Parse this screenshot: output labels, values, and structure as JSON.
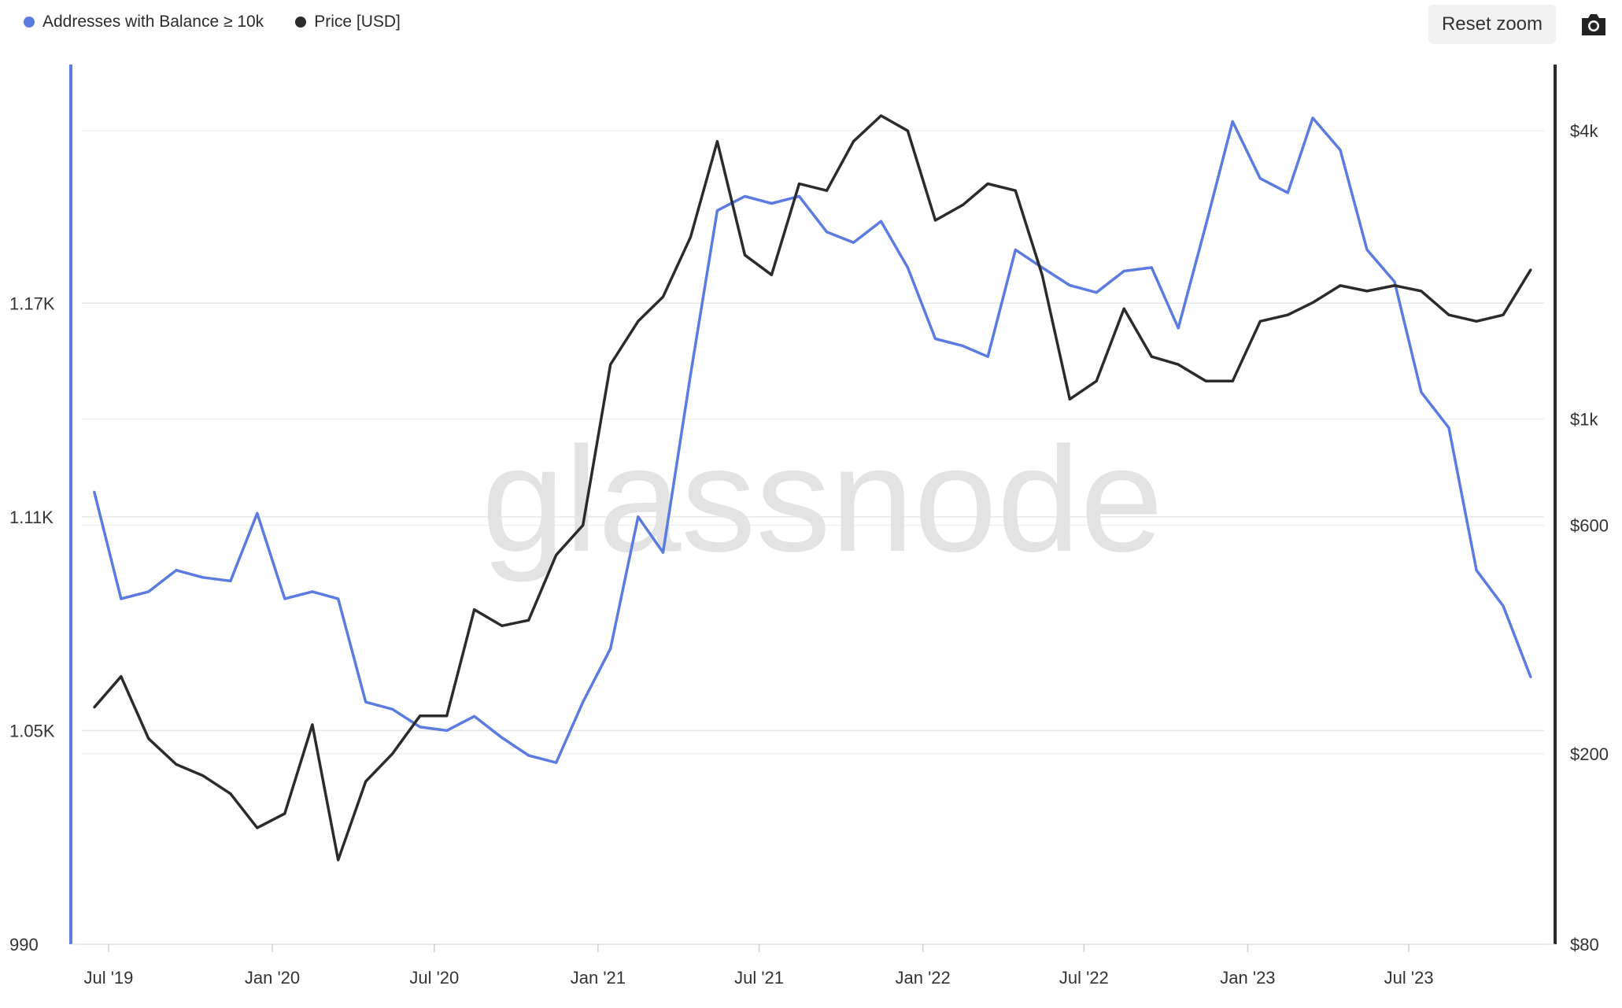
{
  "legend": {
    "series_a_label": "Addresses with Balance ≥ 10k",
    "series_b_label": "Price [USD]"
  },
  "toolbar": {
    "reset_label": "Reset zoom",
    "camera_icon": "camera-icon"
  },
  "watermark": "glassnode",
  "colors": {
    "addresses": "#5b7be0",
    "price": "#2b2b2b",
    "grid": "#e8e8e8"
  },
  "chart_data": {
    "type": "line",
    "x_ticks": [
      "Jul '19",
      "Jan '20",
      "Jul '20",
      "Jan '21",
      "Jul '21",
      "Jan '22",
      "Jul '22",
      "Jan '23",
      "Jul '23"
    ],
    "y_left_ticks": [
      "990",
      "1.05K",
      "1.11K",
      "1.17K"
    ],
    "y_left_values": [
      990,
      1050,
      1110,
      1170
    ],
    "y_left_range": [
      990,
      1237
    ],
    "y_right_ticks": [
      "$80",
      "$200",
      "$600",
      "$1k",
      "$4k"
    ],
    "y_right_values": [
      80,
      200,
      600,
      1000,
      4000
    ],
    "y_right_range": [
      80,
      5500
    ],
    "y_right_scale": "log",
    "x_range": [
      "2019-06-01",
      "2023-11-30"
    ],
    "series": [
      {
        "name": "Addresses with Balance ≥ 10k",
        "axis": "left",
        "color": "#5b7be0",
        "x": [
          "2019-06",
          "2019-07",
          "2019-08",
          "2019-09",
          "2019-10",
          "2019-11",
          "2019-12",
          "2020-01",
          "2020-02",
          "2020-03",
          "2020-04",
          "2020-05",
          "2020-06",
          "2020-07",
          "2020-08",
          "2020-09",
          "2020-10",
          "2020-11",
          "2020-12",
          "2021-01",
          "2021-02",
          "2021-03",
          "2021-04",
          "2021-05",
          "2021-06",
          "2021-07",
          "2021-08",
          "2021-09",
          "2021-10",
          "2021-11",
          "2021-12",
          "2022-01",
          "2022-02",
          "2022-03",
          "2022-04",
          "2022-05",
          "2022-06",
          "2022-07",
          "2022-08",
          "2022-09",
          "2022-10",
          "2022-11",
          "2022-12",
          "2023-01",
          "2023-02",
          "2023-03",
          "2023-04",
          "2023-05",
          "2023-06",
          "2023-07",
          "2023-08",
          "2023-09",
          "2023-10",
          "2023-11"
        ],
        "y": [
          1117,
          1087,
          1089,
          1095,
          1093,
          1092,
          1111,
          1087,
          1089,
          1087,
          1058,
          1056,
          1051,
          1050,
          1054,
          1048,
          1043,
          1041,
          1058,
          1073,
          1110,
          1100,
          1150,
          1196,
          1200,
          1198,
          1200,
          1190,
          1187,
          1193,
          1180,
          1160,
          1158,
          1155,
          1185,
          1180,
          1175,
          1173,
          1179,
          1180,
          1163,
          1192,
          1221,
          1205,
          1201,
          1222,
          1213,
          1185,
          1176,
          1145,
          1135,
          1095,
          1085,
          1065
        ]
      },
      {
        "name": "Price [USD]",
        "axis": "right",
        "color": "#2b2b2b",
        "x": [
          "2019-06",
          "2019-07",
          "2019-08",
          "2019-09",
          "2019-10",
          "2019-11",
          "2019-12",
          "2020-01",
          "2020-02",
          "2020-03",
          "2020-04",
          "2020-05",
          "2020-06",
          "2020-07",
          "2020-08",
          "2020-09",
          "2020-10",
          "2020-11",
          "2020-12",
          "2021-01",
          "2021-02",
          "2021-03",
          "2021-04",
          "2021-05",
          "2021-06",
          "2021-07",
          "2021-08",
          "2021-09",
          "2021-10",
          "2021-11",
          "2021-12",
          "2022-01",
          "2022-02",
          "2022-03",
          "2022-04",
          "2022-05",
          "2022-06",
          "2022-07",
          "2022-08",
          "2022-09",
          "2022-10",
          "2022-11",
          "2022-12",
          "2023-01",
          "2023-02",
          "2023-03",
          "2023-04",
          "2023-05",
          "2023-06",
          "2023-07",
          "2023-08",
          "2023-09",
          "2023-10",
          "2023-11"
        ],
        "y": [
          250,
          290,
          215,
          190,
          180,
          165,
          140,
          150,
          230,
          120,
          175,
          200,
          240,
          240,
          400,
          370,
          380,
          520,
          600,
          1300,
          1600,
          1800,
          2400,
          3800,
          2200,
          2000,
          3100,
          3000,
          3800,
          4300,
          4000,
          2600,
          2800,
          3100,
          3000,
          2000,
          1100,
          1200,
          1700,
          1350,
          1300,
          1200,
          1200,
          1600,
          1650,
          1750,
          1900,
          1850,
          1900,
          1850,
          1650,
          1600,
          1650,
          2050
        ]
      }
    ]
  }
}
